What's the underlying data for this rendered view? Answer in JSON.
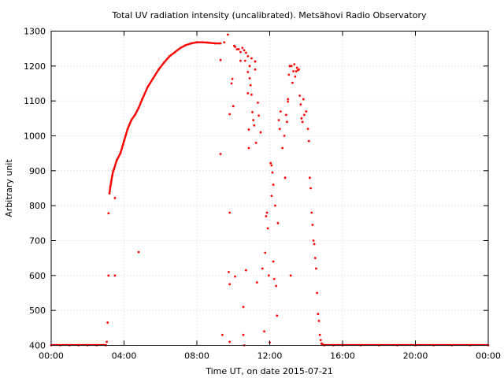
{
  "chart_data": {
    "type": "scatter",
    "title": "Total UV radiation intensity (uncalibrated). Metsähovi Radio Observatory",
    "xlabel": "Time UT, on date 2015-07-21",
    "ylabel": "Arbitrary unit",
    "xlim": [
      "00:00",
      "24:00"
    ],
    "ylim": [
      400,
      1300
    ],
    "x_ticks": [
      "00:00",
      "04:00",
      "08:00",
      "12:00",
      "16:00",
      "20:00",
      "00:00"
    ],
    "y_ticks": [
      400,
      500,
      600,
      700,
      800,
      900,
      1000,
      1100,
      1200,
      1300
    ],
    "grid": true,
    "marker_color": "#ff0000",
    "series": [
      {
        "x_unit": "hours UT",
        "points": [
          [
            0.0,
            400
          ],
          [
            0.5,
            400
          ],
          [
            1.0,
            400
          ],
          [
            1.5,
            400
          ],
          [
            2.0,
            400
          ],
          [
            2.5,
            400
          ],
          [
            3.0,
            400
          ],
          [
            3.05,
            410
          ],
          [
            3.1,
            465
          ],
          [
            3.15,
            600
          ],
          [
            3.15,
            778
          ],
          [
            3.2,
            835
          ],
          [
            3.25,
            855
          ],
          [
            3.3,
            870
          ],
          [
            3.35,
            885
          ],
          [
            3.4,
            898
          ],
          [
            3.45,
            905
          ],
          [
            3.5,
            600
          ],
          [
            3.5,
            822
          ],
          [
            3.6,
            930
          ],
          [
            3.8,
            950
          ],
          [
            4.0,
            985
          ],
          [
            4.2,
            1020
          ],
          [
            4.4,
            1045
          ],
          [
            4.6,
            1060
          ],
          [
            4.8,
            667
          ],
          [
            4.8,
            1080
          ],
          [
            5.0,
            1105
          ],
          [
            5.3,
            1140
          ],
          [
            5.6,
            1165
          ],
          [
            5.9,
            1190
          ],
          [
            6.2,
            1210
          ],
          [
            6.5,
            1228
          ],
          [
            6.8,
            1240
          ],
          [
            7.1,
            1252
          ],
          [
            7.4,
            1260
          ],
          [
            7.7,
            1265
          ],
          [
            8.0,
            1268
          ],
          [
            8.3,
            1268
          ],
          [
            8.6,
            1267
          ],
          [
            9.0,
            1265
          ],
          [
            9.3,
            1265
          ],
          [
            9.3,
            1217
          ],
          [
            9.3,
            948
          ],
          [
            9.4,
            430
          ],
          [
            9.5,
            1268
          ],
          [
            9.7,
            1290
          ],
          [
            9.75,
            610
          ],
          [
            9.8,
            1062
          ],
          [
            9.8,
            780
          ],
          [
            9.8,
            575
          ],
          [
            9.8,
            410
          ],
          [
            9.9,
            1150
          ],
          [
            9.95,
            1163
          ],
          [
            10.0,
            1085
          ],
          [
            10.05,
            1258
          ],
          [
            10.1,
            1255
          ],
          [
            10.1,
            597
          ],
          [
            10.2,
            1248
          ],
          [
            10.3,
            1248
          ],
          [
            10.4,
            1240
          ],
          [
            10.4,
            1215
          ],
          [
            10.5,
            1252
          ],
          [
            10.55,
            510
          ],
          [
            10.55,
            430
          ],
          [
            10.6,
            1245
          ],
          [
            10.6,
            400
          ],
          [
            10.65,
            1215
          ],
          [
            10.7,
            1238
          ],
          [
            10.7,
            615
          ],
          [
            10.8,
            1228
          ],
          [
            10.8,
            1183
          ],
          [
            10.8,
            1122
          ],
          [
            10.85,
            1018
          ],
          [
            10.85,
            965
          ],
          [
            10.9,
            1200
          ],
          [
            10.9,
            1165
          ],
          [
            10.95,
            1145
          ],
          [
            11.0,
            1222
          ],
          [
            11.0,
            1118
          ],
          [
            11.05,
            1068
          ],
          [
            11.1,
            1045
          ],
          [
            11.15,
            1030
          ],
          [
            11.2,
            1213
          ],
          [
            11.2,
            1190
          ],
          [
            11.25,
            980
          ],
          [
            11.3,
            580
          ],
          [
            11.35,
            1095
          ],
          [
            11.4,
            1058
          ],
          [
            11.5,
            1010
          ],
          [
            11.6,
            620
          ],
          [
            11.7,
            440
          ],
          [
            11.75,
            665
          ],
          [
            11.8,
            770
          ],
          [
            11.85,
            780
          ],
          [
            11.9,
            735
          ],
          [
            11.95,
            600
          ],
          [
            12.0,
            408
          ],
          [
            12.05,
            922
          ],
          [
            12.1,
            828
          ],
          [
            12.1,
            915
          ],
          [
            12.15,
            895
          ],
          [
            12.2,
            860
          ],
          [
            12.2,
            640
          ],
          [
            12.25,
            590
          ],
          [
            12.3,
            800
          ],
          [
            12.35,
            570
          ],
          [
            12.4,
            485
          ],
          [
            12.45,
            750
          ],
          [
            12.5,
            1045
          ],
          [
            12.55,
            1020
          ],
          [
            12.6,
            1070
          ],
          [
            12.7,
            965
          ],
          [
            12.8,
            1000
          ],
          [
            12.85,
            880
          ],
          [
            12.9,
            1060
          ],
          [
            12.95,
            1040
          ],
          [
            13.0,
            1105
          ],
          [
            13.0,
            1098
          ],
          [
            13.05,
            1175
          ],
          [
            13.1,
            1200
          ],
          [
            13.15,
            600
          ],
          [
            13.2,
            1200
          ],
          [
            13.25,
            1152
          ],
          [
            13.3,
            1185
          ],
          [
            13.35,
            1205
          ],
          [
            13.4,
            1170
          ],
          [
            13.45,
            1185
          ],
          [
            13.5,
            1195
          ],
          [
            13.55,
            1188
          ],
          [
            13.6,
            1190
          ],
          [
            13.65,
            1115
          ],
          [
            13.7,
            1090
          ],
          [
            13.75,
            1050
          ],
          [
            13.8,
            1040
          ],
          [
            13.85,
            1105
          ],
          [
            13.9,
            1060
          ],
          [
            14.0,
            1070
          ],
          [
            14.1,
            1020
          ],
          [
            14.15,
            985
          ],
          [
            14.2,
            880
          ],
          [
            14.25,
            850
          ],
          [
            14.3,
            780
          ],
          [
            14.35,
            745
          ],
          [
            14.4,
            700
          ],
          [
            14.45,
            690
          ],
          [
            14.5,
            650
          ],
          [
            14.55,
            620
          ],
          [
            14.6,
            550
          ],
          [
            14.65,
            490
          ],
          [
            14.7,
            470
          ],
          [
            14.75,
            430
          ],
          [
            14.8,
            415
          ],
          [
            14.85,
            405
          ],
          [
            14.9,
            403
          ],
          [
            15.0,
            400
          ],
          [
            15.5,
            400
          ],
          [
            16.0,
            400
          ],
          [
            17.0,
            400
          ],
          [
            18.0,
            400
          ],
          [
            19.0,
            400
          ],
          [
            20.0,
            400
          ],
          [
            21.0,
            400
          ],
          [
            22.0,
            400
          ],
          [
            23.0,
            400
          ],
          [
            24.0,
            400
          ]
        ]
      }
    ]
  }
}
